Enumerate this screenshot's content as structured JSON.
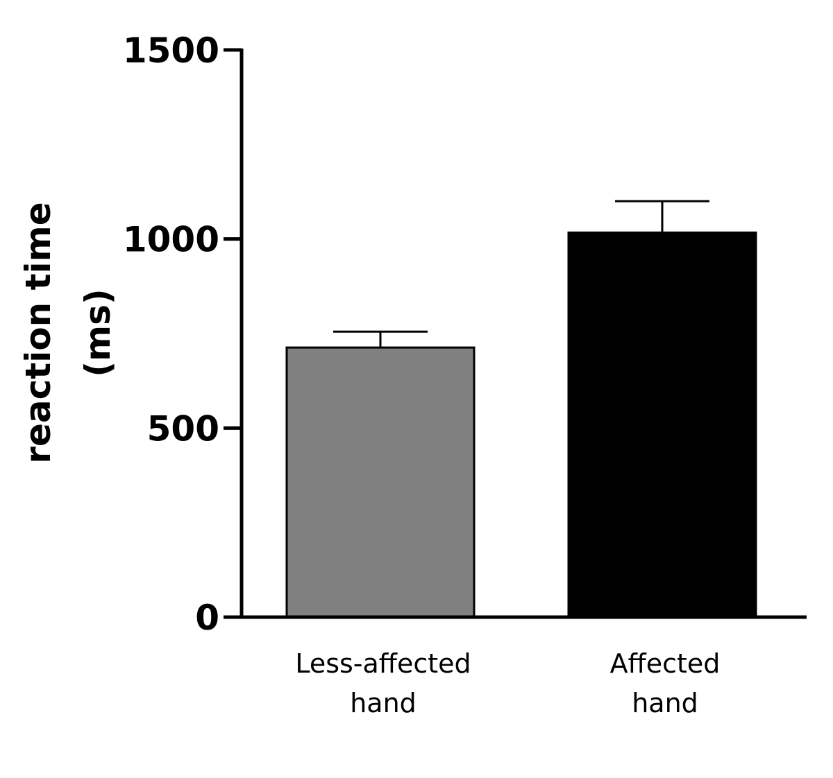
{
  "chart_data": {
    "type": "bar",
    "categories": [
      [
        "Less-affected",
        "hand"
      ],
      [
        "Affected",
        "hand"
      ]
    ],
    "values": [
      713,
      1017
    ],
    "error_upper": [
      755,
      1100
    ],
    "colors": [
      "#808080",
      "#000000"
    ],
    "ylabel": [
      "reaction time",
      "(ms)"
    ],
    "ylim": [
      0,
      1500
    ],
    "yticks": [
      0,
      500,
      1000,
      1500
    ],
    "ytick_labels": [
      "0",
      "500",
      "1000",
      "1500"
    ],
    "grid": false
  }
}
